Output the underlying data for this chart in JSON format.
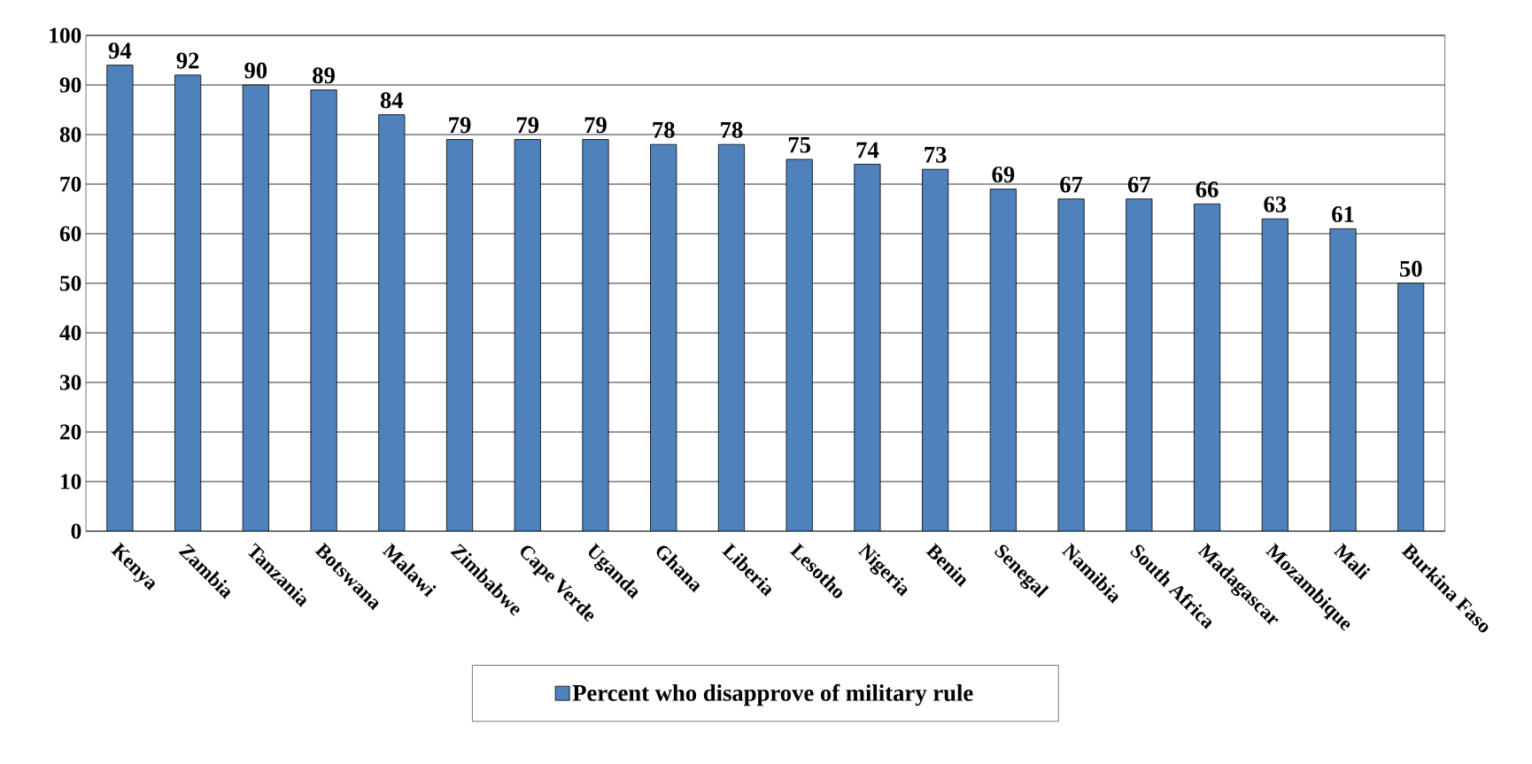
{
  "chart_data": {
    "type": "bar",
    "categories": [
      "Kenya",
      "Zambia",
      "Tanzania",
      "Botswana",
      "Malawi",
      "Zimbabwe",
      "Cape Verde",
      "Uganda",
      "Ghana",
      "Liberia",
      "Lesotho",
      "Nigeria",
      "Benin",
      "Senegal",
      "Namibia",
      "South Africa",
      "Madagascar",
      "Mozambique",
      "Mali",
      "Burkina Faso"
    ],
    "series": [
      {
        "name": "Percent who disapprove of military rule",
        "color": "#4f81bd",
        "values": [
          94,
          92,
          90,
          89,
          84,
          79,
          79,
          79,
          78,
          78,
          75,
          74,
          73,
          69,
          67,
          67,
          66,
          63,
          61,
          50
        ]
      }
    ],
    "ylim": [
      0,
      100
    ],
    "yticks": [
      0,
      10,
      20,
      30,
      40,
      50,
      60,
      70,
      80,
      90,
      100
    ],
    "grid": "y",
    "legend": "bottom",
    "data_labels": true
  }
}
